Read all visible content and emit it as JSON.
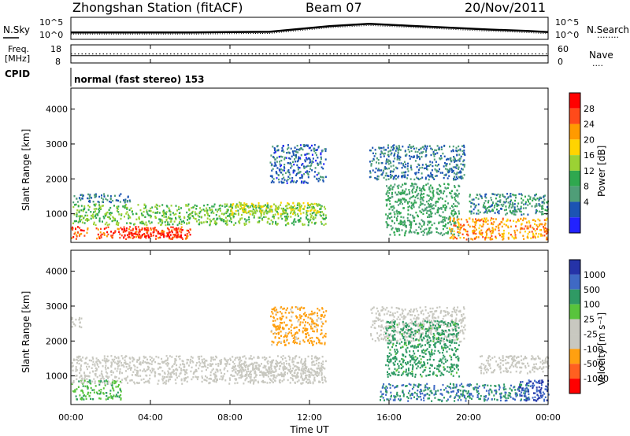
{
  "header": {
    "station": "Zhongshan Station (fitACF)",
    "beam": "Beam 07",
    "date": "20/Nov/2011"
  },
  "noise_panel": {
    "left_label": "N.Sky",
    "right_label": "N.Search",
    "left_ticks": [
      "10^5",
      "10^0"
    ],
    "right_ticks": [
      "10^5",
      "10^0"
    ],
    "right_dotted_legend": "........"
  },
  "freq_panel": {
    "left_label_line1": "Freq.",
    "left_label_line2": "[MHz]",
    "left_ticks": [
      "18",
      "8"
    ],
    "right_ticks": [
      "60",
      "0"
    ],
    "right_label": "Nave",
    "right_dotted_legend": "...."
  },
  "cpid": {
    "label": "CPID",
    "mode_text": "normal (fast stereo) 153"
  },
  "x_axis": {
    "title": "Time UT",
    "ticks": [
      "00:00",
      "04:00",
      "08:00",
      "12:00",
      "16:00",
      "20:00",
      "00:00"
    ],
    "tick_hours": [
      0,
      4,
      8,
      12,
      16,
      20,
      24
    ],
    "range_hours": [
      0,
      24
    ]
  },
  "power_panel": {
    "ylabel": "Slant Range [km]",
    "yticks": [
      "4000",
      "3000",
      "2000",
      "1000"
    ],
    "ytick_values": [
      4000,
      3000,
      2000,
      1000
    ],
    "yrange_km": [
      180,
      4600
    ],
    "colorbar": {
      "title": "Power [dB]",
      "labels": [
        "28",
        "24",
        "20",
        "16",
        "12",
        "8",
        "4"
      ],
      "colors": [
        "#ff0000",
        "#ff4a1a",
        "#ff9a00",
        "#ffd400",
        "#9bd234",
        "#2fa84f",
        "#4f9e78",
        "#1c54b4",
        "#2222ff"
      ]
    }
  },
  "velocity_panel": {
    "ylabel": "Slant Range [km]",
    "yticks": [
      "4000",
      "3000",
      "2000",
      "1000"
    ],
    "ytick_values": [
      4000,
      3000,
      2000,
      1000
    ],
    "yrange_km": [
      180,
      4600
    ],
    "colorbar": {
      "title": "Velocity [m s⁻¹]",
      "labels": [
        "1000",
        "500",
        "100",
        "25",
        "-25",
        "-100",
        "-500",
        "-1000"
      ],
      "colors": [
        "#2533a8",
        "#3f69c4",
        "#2f9a64",
        "#58c43c",
        "#c8c8c0",
        "#c8c8c0",
        "#ffa010",
        "#ff6020",
        "#ff0000"
      ]
    }
  },
  "chart_data": {
    "type": "heatmap",
    "title": "Zhongshan Station (fitACF)",
    "xlabel": "Time UT",
    "ylabel": "Slant Range [km]",
    "xlim_hours": [
      0,
      24
    ],
    "ylim_km": [
      180,
      4600
    ],
    "power_regions": [
      {
        "t": [
          0.0,
          6.0
        ],
        "r": [
          300,
          650
        ],
        "db": 28
      },
      {
        "t": [
          2.6,
          5.6
        ],
        "r": [
          330,
          620
        ],
        "db": 30
      },
      {
        "t": [
          0.0,
          12.8
        ],
        "r": [
          700,
          1300
        ],
        "db": 14
      },
      {
        "t": [
          0.0,
          3.0
        ],
        "r": [
          1350,
          1600
        ],
        "db": 6
      },
      {
        "t": [
          8.0,
          12.6
        ],
        "r": [
          1000,
          1350
        ],
        "db": 18
      },
      {
        "t": [
          10.0,
          12.8
        ],
        "r": [
          1900,
          3000
        ],
        "db": 5
      },
      {
        "t": [
          15.0,
          19.8
        ],
        "r": [
          2000,
          3000
        ],
        "db": 6
      },
      {
        "t": [
          15.8,
          19.5
        ],
        "r": [
          400,
          1900
        ],
        "db": 10
      },
      {
        "t": [
          19.0,
          24.0
        ],
        "r": [
          280,
          900
        ],
        "db": 24
      },
      {
        "t": [
          20.0,
          24.0
        ],
        "r": [
          1000,
          1600
        ],
        "db": 8
      }
    ],
    "velocity_regions": [
      {
        "t": [
          0.0,
          2.5
        ],
        "r": [
          350,
          900
        ],
        "v": 50
      },
      {
        "t": [
          0.0,
          12.8
        ],
        "r": [
          800,
          1600
        ],
        "v": 0
      },
      {
        "t": [
          0.0,
          0.5
        ],
        "r": [
          2400,
          2700
        ],
        "v": 0
      },
      {
        "t": [
          8.0,
          12.6
        ],
        "r": [
          1000,
          1400
        ],
        "v": 0
      },
      {
        "t": [
          10.0,
          12.8
        ],
        "r": [
          1900,
          3000
        ],
        "v": -100
      },
      {
        "t": [
          15.0,
          19.8
        ],
        "r": [
          2000,
          3000
        ],
        "v": -25
      },
      {
        "t": [
          15.8,
          19.5
        ],
        "r": [
          1000,
          2600
        ],
        "v": 100
      },
      {
        "t": [
          15.5,
          23.0
        ],
        "r": [
          300,
          800
        ],
        "v": 300
      },
      {
        "t": [
          22.5,
          24.0
        ],
        "r": [
          300,
          900
        ],
        "v": 700
      },
      {
        "t": [
          20.5,
          24.0
        ],
        "r": [
          1100,
          1600
        ],
        "v": 0
      }
    ],
    "noise_sky_series": {
      "log10": [
        1.6,
        1.6,
        1.6,
        1.6,
        1.7,
        1.8,
        3.3,
        3.9,
        3.4,
        2.9,
        2.4,
        2.0,
        1.7
      ]
    },
    "noise_sky_hours": [
      0,
      2,
      4,
      6,
      8,
      10,
      13,
      15,
      17,
      19,
      21,
      23,
      24
    ],
    "freq_mhz": 12,
    "nave": 30
  }
}
